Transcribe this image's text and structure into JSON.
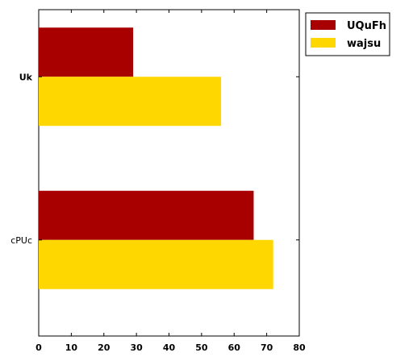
{
  "chart_data": {
    "type": "bar",
    "orientation": "horizontal",
    "categories": [
      "Uk",
      "cPUc"
    ],
    "series": [
      {
        "name": "UQuFh",
        "color": "#a80000",
        "values": [
          29,
          66
        ]
      },
      {
        "name": "wajsu",
        "color": "#ffd700",
        "values": [
          56,
          72
        ]
      }
    ],
    "xlim": [
      0,
      80
    ],
    "xticks": [
      0,
      10,
      20,
      30,
      40,
      50,
      60,
      70,
      80
    ],
    "xlabel": "",
    "ylabel": "",
    "title": "",
    "grid": false,
    "legend_position": "outside top-right"
  }
}
